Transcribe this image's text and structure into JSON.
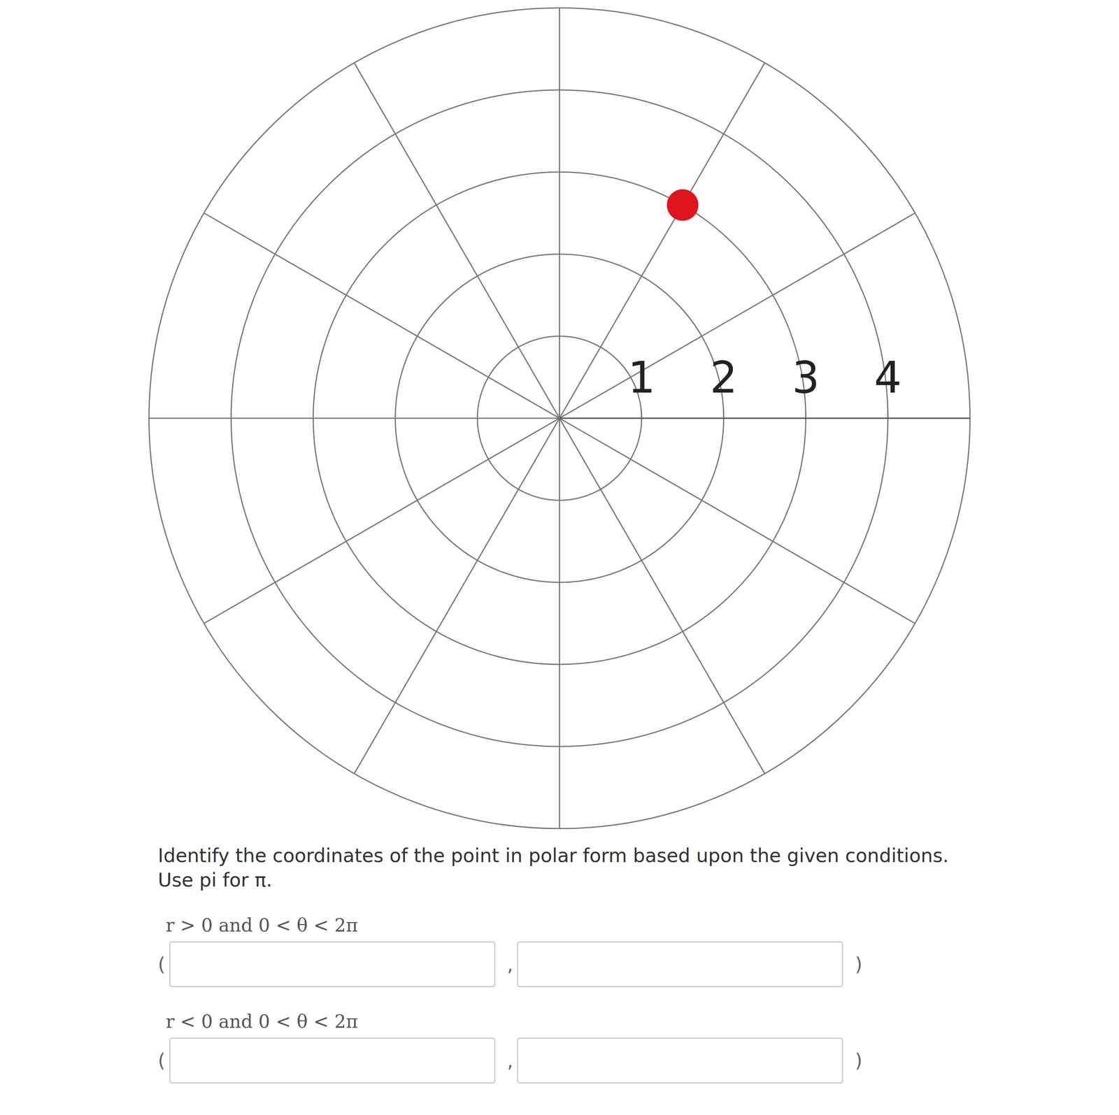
{
  "chart_data": {
    "type": "polar",
    "r": [
      3
    ],
    "theta": [
      60
    ],
    "color": "#e0141e",
    "marker": "circle",
    "rlim": [
      0,
      5
    ],
    "rticks": [
      1,
      2,
      3,
      4
    ],
    "thetaticks": [
      0,
      30,
      60,
      90,
      120,
      150,
      180,
      210,
      240,
      270,
      300,
      330
    ],
    "grid": true
  },
  "form": {
    "instructions": [
      "Identify the coordinates of the point in polar form based upon the given conditions.",
      "Use pi for π."
    ],
    "open": "(",
    "separator": ",",
    "close": ")",
    "conditions": [
      "r > 0 and 0 < θ < 2π",
      "r < 0 and 0 < θ < 2π"
    ]
  }
}
